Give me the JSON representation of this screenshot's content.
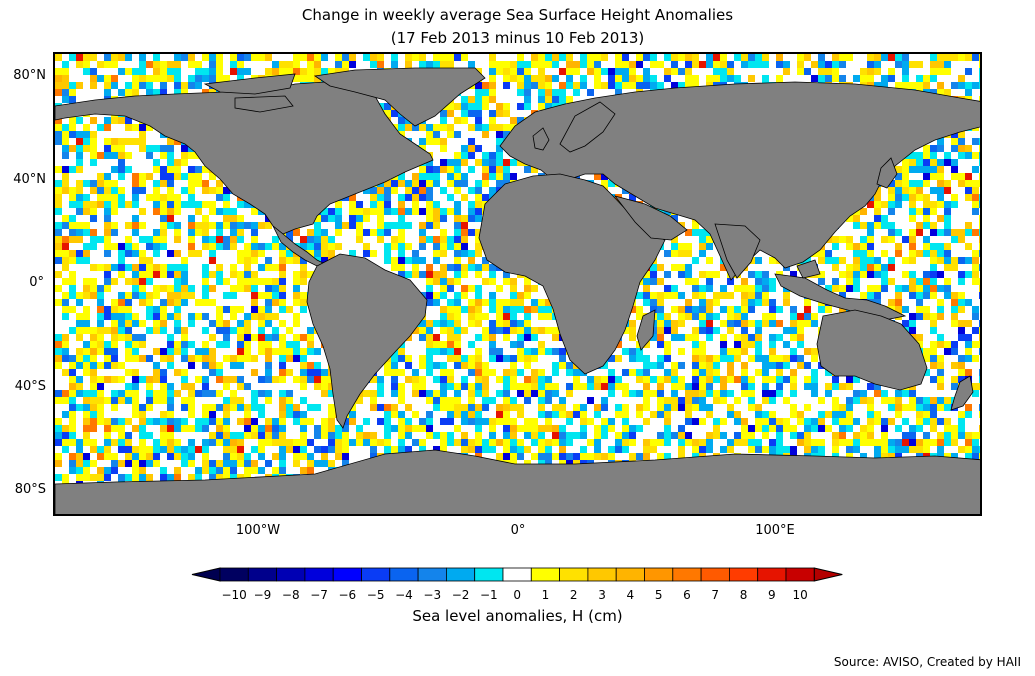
{
  "title_line1": "Change in weekly average Sea Surface Height Anomalies",
  "title_line2": "(17 Feb 2013 minus 10 Feb 2013)",
  "lat_ticks": [
    {
      "label": "80°N",
      "value": 80
    },
    {
      "label": "40°N",
      "value": 40
    },
    {
      "label": "0°",
      "value": 0
    },
    {
      "label": "40°S",
      "value": -40
    },
    {
      "label": "80°S",
      "value": -80
    }
  ],
  "lon_ticks": [
    {
      "label": "100°W",
      "value": -100
    },
    {
      "label": "0°",
      "value": 0
    },
    {
      "label": "100°E",
      "value": 100
    }
  ],
  "colorbar": {
    "label": "Sea level anomalies, H (cm)",
    "ticks": [
      "−10",
      "−9",
      "−8",
      "−7",
      "−6",
      "−5",
      "−4",
      "−3",
      "−2",
      "−1",
      "0",
      "1",
      "2",
      "3",
      "4",
      "5",
      "6",
      "7",
      "8",
      "9",
      "10"
    ],
    "colors": [
      "#000060",
      "#00008c",
      "#0000b4",
      "#0000dc",
      "#0000ff",
      "#0a3cf5",
      "#0a64f0",
      "#1484eb",
      "#00aaf0",
      "#00e6f0",
      "#ffffff",
      "#ffff00",
      "#ffe100",
      "#ffc800",
      "#ffb400",
      "#ff9600",
      "#ff7800",
      "#ff5a00",
      "#ff3c00",
      "#e61400",
      "#c80000"
    ],
    "under_color": "#000050",
    "over_color": "#b40000"
  },
  "map_colors": {
    "land": "#808080",
    "ice": "#ffffff",
    "coast": "#000000"
  },
  "source": "Source: AVISO, Created by HAII"
}
